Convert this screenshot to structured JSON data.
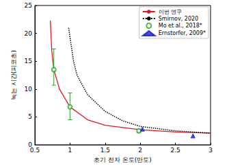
{
  "chart_data": {
    "type": "line",
    "x_label": "초기 전자 온도(만도)",
    "y_label": "녹는 시간(피코초)",
    "xlim": [
      0.5,
      3
    ],
    "xticks": [
      0.5,
      1,
      1.5,
      2,
      2.5,
      3
    ],
    "ylim": [
      0,
      25
    ],
    "yticks": [
      0,
      5,
      10,
      15,
      20,
      25
    ],
    "grid": false,
    "legend": "upper right",
    "series": [
      {
        "name": "이번 연구",
        "type": "line",
        "color": "#e8141c",
        "line_style": "solid",
        "x": [
          0.72,
          0.74,
          0.77,
          0.85,
          1.0,
          1.25,
          1.5,
          2.0,
          2.5,
          3.0
        ],
        "values": [
          22.3,
          17,
          13.5,
          10,
          6.8,
          4.5,
          3.5,
          2.7,
          2.3,
          2.1
        ]
      },
      {
        "name": "Smirnov, 2020",
        "type": "line",
        "color": "#000000",
        "line_style": "dotted",
        "x": [
          0.98,
          1.05,
          1.1,
          1.25,
          1.5,
          1.75,
          2.0,
          2.5,
          3.0
        ],
        "values": [
          21,
          15,
          12.5,
          9,
          6,
          4.3,
          3.3,
          2.5,
          2.1
        ]
      },
      {
        "name": "Mo et al., 2018*",
        "type": "scatter",
        "color": "#2ca02c",
        "marker": "circle-open",
        "x": [
          0.77,
          1.0,
          1.98
        ],
        "values": [
          13.5,
          6.8,
          2.5
        ],
        "error_low": [
          10.7,
          4.5,
          2.2
        ],
        "error_high": [
          17.2,
          9.3,
          2.8
        ]
      },
      {
        "name": "Ernstorfer, 2009*",
        "type": "scatter",
        "color": "#1a1acc",
        "marker": "triangle",
        "x": [
          2.03,
          2.75
        ],
        "values": [
          2.8,
          1.6
        ]
      }
    ]
  }
}
